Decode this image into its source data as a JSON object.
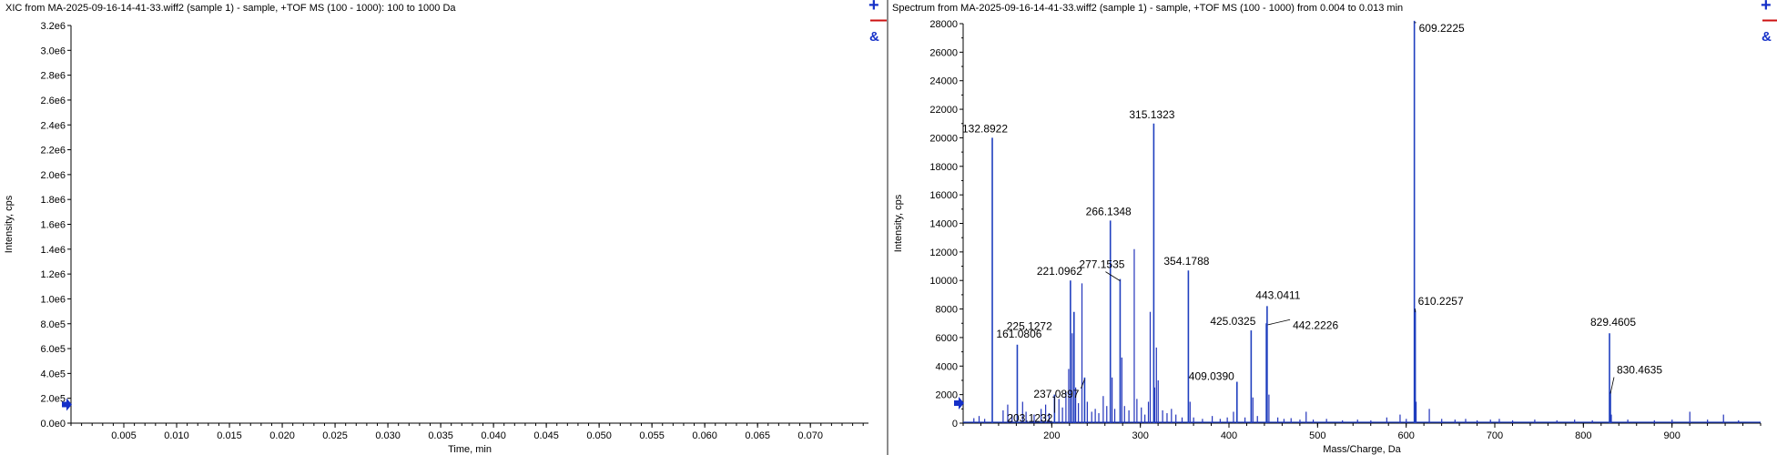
{
  "left_panel": {
    "title": "XIC from MA-2025-09-16-14-41-33.wiff2 (sample 1) - sample, +TOF MS (100 - 1000): 100 to 1000 Da",
    "controls": {
      "zoom_in": "+",
      "zoom_out": "—",
      "link": "&"
    }
  },
  "right_panel": {
    "title": "Spectrum from MA-2025-09-16-14-41-33.wiff2 (sample 1) - sample, +TOF MS (100 - 1000) from 0.004 to 0.013 min",
    "controls": {
      "zoom_in": "+",
      "zoom_out": "—",
      "link": "&"
    }
  },
  "chart_data": [
    {
      "type": "line",
      "title": "XIC from MA-2025-09-16-14-41-33.wiff2 (sample 1) - sample, +TOF MS (100 - 1000): 100 to 1000 Da",
      "xlabel": "Time, min",
      "ylabel": "Intensity, cps",
      "xlim": [
        0.0,
        0.0755
      ],
      "ylim": [
        0,
        3200000.0
      ],
      "x_ticks": [
        0.005,
        0.01,
        0.015,
        0.02,
        0.025,
        0.03,
        0.035,
        0.04,
        0.045,
        0.05,
        0.055,
        0.06,
        0.065,
        0.07
      ],
      "x_tick_labels": [
        "0.005",
        "0.010",
        "0.015",
        "0.020",
        "0.025",
        "0.030",
        "0.035",
        "0.040",
        "0.045",
        "0.050",
        "0.055",
        "0.060",
        "0.065",
        "0.070"
      ],
      "y_ticks": [
        0,
        200000,
        400000,
        600000,
        800000,
        1000000,
        1200000,
        1400000,
        1600000,
        1800000,
        2000000,
        2200000,
        2400000,
        2600000,
        2800000,
        3000000,
        3200000
      ],
      "y_tick_labels": [
        "0.0e0",
        "2.0e5",
        "4.0e5",
        "6.0e5",
        "8.0e5",
        "1.0e6",
        "1.2e6",
        "1.4e6",
        "1.6e6",
        "1.8e6",
        "2.0e6",
        "2.2e6",
        "2.4e6",
        "2.6e6",
        "2.8e6",
        "3.0e6",
        "3.2e6"
      ],
      "marker_y": 150000,
      "series": [
        {
          "x": [],
          "y": []
        }
      ]
    },
    {
      "type": "bar",
      "title": "Spectrum from MA-2025-09-16-14-41-33.wiff2 (sample 1) - sample, +TOF MS (100 - 1000) from 0.004 to 0.013 min",
      "xlabel": "Mass/Charge, Da",
      "ylabel": "Intensity, cps",
      "xlim": [
        100,
        1000
      ],
      "ylim": [
        0,
        28000
      ],
      "x_ticks": [
        200,
        300,
        400,
        500,
        600,
        700,
        800,
        900
      ],
      "x_tick_labels": [
        "200",
        "300",
        "400",
        "500",
        "600",
        "700",
        "800",
        "900"
      ],
      "y_ticks": [
        0,
        2000,
        4000,
        6000,
        8000,
        10000,
        12000,
        14000,
        16000,
        18000,
        20000,
        22000,
        24000,
        26000,
        28000
      ],
      "y_tick_labels": [
        "0",
        "2000",
        "4000",
        "6000",
        "8000",
        "10000",
        "12000",
        "14000",
        "16000",
        "18000",
        "20000",
        "22000",
        "24000",
        "26000",
        "28000"
      ],
      "marker_y": 1400,
      "peaks": [
        {
          "mz": 132.8922,
          "intensity": 20000,
          "label": "132.8922"
        },
        {
          "mz": 161.0806,
          "intensity": 5500,
          "label": "161.0806"
        },
        {
          "mz": 203.1232,
          "intensity": 2000,
          "label": "203.1232"
        },
        {
          "mz": 221.0962,
          "intensity": 10000,
          "label": "221.0962"
        },
        {
          "mz": 225.1272,
          "intensity": 7800,
          "label": "225.1272"
        },
        {
          "mz": 237.0897,
          "intensity": 3200,
          "label": "237.0897"
        },
        {
          "mz": 266.1348,
          "intensity": 14200,
          "label": "266.1348"
        },
        {
          "mz": 277.1535,
          "intensity": 10100,
          "label": "277.1535"
        },
        {
          "mz": 315.1323,
          "intensity": 21000,
          "label": "315.1323"
        },
        {
          "mz": 354.1788,
          "intensity": 10700,
          "label": "354.1788"
        },
        {
          "mz": 409.039,
          "intensity": 2900,
          "label": "409.0390"
        },
        {
          "mz": 425.0325,
          "intensity": 6500,
          "label": "425.0325"
        },
        {
          "mz": 442.2226,
          "intensity": 7000,
          "label": "442.2226"
        },
        {
          "mz": 443.0411,
          "intensity": 8200,
          "label": "443.0411"
        },
        {
          "mz": 609.2225,
          "intensity": 28200,
          "label": "609.2225"
        },
        {
          "mz": 610.2257,
          "intensity": 7900,
          "label": "610.2257"
        },
        {
          "mz": 829.4605,
          "intensity": 6300,
          "label": "829.4605"
        },
        {
          "mz": 830.4635,
          "intensity": 2200,
          "label": "830.4635"
        }
      ],
      "minor_peaks": [
        {
          "mz": 112.1,
          "intensity": 350
        },
        {
          "mz": 118.0,
          "intensity": 500
        },
        {
          "mz": 124.3,
          "intensity": 300
        },
        {
          "mz": 145.1,
          "intensity": 900
        },
        {
          "mz": 150.3,
          "intensity": 1300
        },
        {
          "mz": 155.2,
          "intensity": 600
        },
        {
          "mz": 167.1,
          "intensity": 1500
        },
        {
          "mz": 171.0,
          "intensity": 800
        },
        {
          "mz": 180.1,
          "intensity": 600
        },
        {
          "mz": 188.0,
          "intensity": 1000
        },
        {
          "mz": 193.1,
          "intensity": 1300
        },
        {
          "mz": 197.0,
          "intensity": 700
        },
        {
          "mz": 208.1,
          "intensity": 1700
        },
        {
          "mz": 212.1,
          "intensity": 1100
        },
        {
          "mz": 216.0,
          "intensity": 2200
        },
        {
          "mz": 219.1,
          "intensity": 3800
        },
        {
          "mz": 223.1,
          "intensity": 6300
        },
        {
          "mz": 227.0,
          "intensity": 2500
        },
        {
          "mz": 230.1,
          "intensity": 1400
        },
        {
          "mz": 234.1,
          "intensity": 9800
        },
        {
          "mz": 240.1,
          "intensity": 1500
        },
        {
          "mz": 245.1,
          "intensity": 800
        },
        {
          "mz": 249.1,
          "intensity": 1000
        },
        {
          "mz": 253.1,
          "intensity": 700
        },
        {
          "mz": 258.1,
          "intensity": 1900
        },
        {
          "mz": 262.1,
          "intensity": 1200
        },
        {
          "mz": 268.1,
          "intensity": 3200
        },
        {
          "mz": 271.1,
          "intensity": 1000
        },
        {
          "mz": 279.1,
          "intensity": 4600
        },
        {
          "mz": 282.1,
          "intensity": 1200
        },
        {
          "mz": 287.1,
          "intensity": 900
        },
        {
          "mz": 293.1,
          "intensity": 12200
        },
        {
          "mz": 296.1,
          "intensity": 1700
        },
        {
          "mz": 301.1,
          "intensity": 1100
        },
        {
          "mz": 305.1,
          "intensity": 600
        },
        {
          "mz": 309.1,
          "intensity": 1500
        },
        {
          "mz": 311.1,
          "intensity": 7800
        },
        {
          "mz": 316.1,
          "intensity": 2500
        },
        {
          "mz": 318.1,
          "intensity": 5300
        },
        {
          "mz": 320.1,
          "intensity": 3000
        },
        {
          "mz": 325.1,
          "intensity": 900
        },
        {
          "mz": 330.1,
          "intensity": 700
        },
        {
          "mz": 335.1,
          "intensity": 1000
        },
        {
          "mz": 340.1,
          "intensity": 600
        },
        {
          "mz": 347.1,
          "intensity": 400
        },
        {
          "mz": 356.1,
          "intensity": 1500
        },
        {
          "mz": 360.1,
          "intensity": 400
        },
        {
          "mz": 370.1,
          "intensity": 300
        },
        {
          "mz": 381.1,
          "intensity": 500
        },
        {
          "mz": 390.1,
          "intensity": 300
        },
        {
          "mz": 398.1,
          "intensity": 400
        },
        {
          "mz": 405.1,
          "intensity": 800
        },
        {
          "mz": 418.1,
          "intensity": 400
        },
        {
          "mz": 427.0,
          "intensity": 1800
        },
        {
          "mz": 432.1,
          "intensity": 500
        },
        {
          "mz": 445.1,
          "intensity": 2000
        },
        {
          "mz": 455.1,
          "intensity": 400
        },
        {
          "mz": 462.1,
          "intensity": 300
        },
        {
          "mz": 470.1,
          "intensity": 350
        },
        {
          "mz": 480.1,
          "intensity": 250
        },
        {
          "mz": 487.1,
          "intensity": 800
        },
        {
          "mz": 495.1,
          "intensity": 250
        },
        {
          "mz": 510.1,
          "intensity": 300
        },
        {
          "mz": 528.1,
          "intensity": 200
        },
        {
          "mz": 545.1,
          "intensity": 250
        },
        {
          "mz": 560.1,
          "intensity": 200
        },
        {
          "mz": 578.1,
          "intensity": 400
        },
        {
          "mz": 593.1,
          "intensity": 600
        },
        {
          "mz": 600.1,
          "intensity": 300
        },
        {
          "mz": 611.2,
          "intensity": 1500
        },
        {
          "mz": 626.1,
          "intensity": 1000
        },
        {
          "mz": 640.1,
          "intensity": 300
        },
        {
          "mz": 655.1,
          "intensity": 250
        },
        {
          "mz": 667.1,
          "intensity": 300
        },
        {
          "mz": 680.1,
          "intensity": 200
        },
        {
          "mz": 695.1,
          "intensity": 250
        },
        {
          "mz": 705.1,
          "intensity": 300
        },
        {
          "mz": 720.1,
          "intensity": 200
        },
        {
          "mz": 745.1,
          "intensity": 250
        },
        {
          "mz": 770.1,
          "intensity": 200
        },
        {
          "mz": 790.1,
          "intensity": 250
        },
        {
          "mz": 810.1,
          "intensity": 200
        },
        {
          "mz": 831.5,
          "intensity": 600
        },
        {
          "mz": 850.1,
          "intensity": 250
        },
        {
          "mz": 880.1,
          "intensity": 200
        },
        {
          "mz": 900.1,
          "intensity": 250
        },
        {
          "mz": 920.1,
          "intensity": 800
        },
        {
          "mz": 940.1,
          "intensity": 250
        },
        {
          "mz": 958.1,
          "intensity": 600
        },
        {
          "mz": 975.1,
          "intensity": 200
        }
      ]
    }
  ]
}
